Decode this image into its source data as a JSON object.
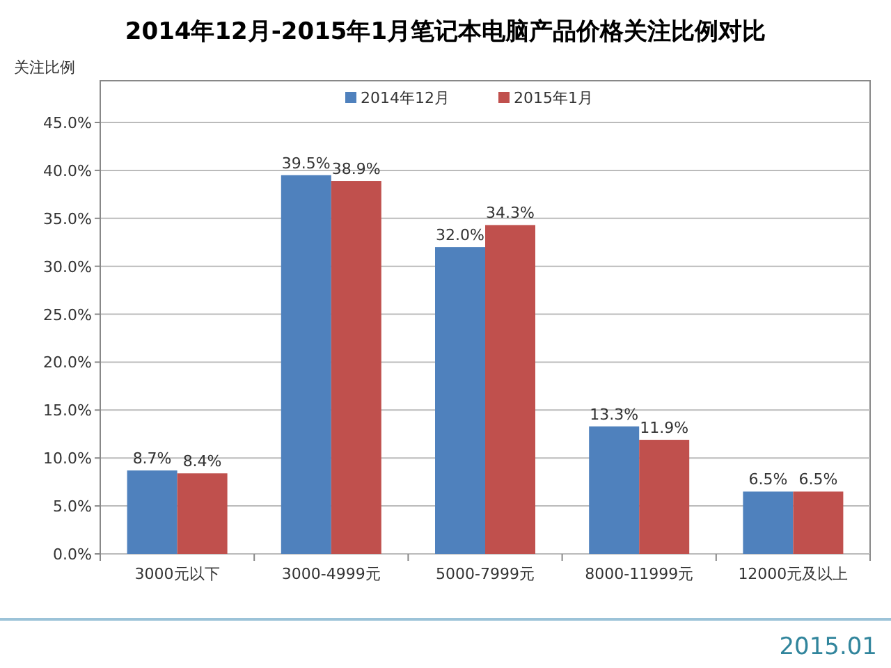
{
  "chart_data": {
    "type": "bar",
    "title": "2014年12月-2015年1月笔记本电脑产品价格关注比例对比",
    "ylabel": "关注比例",
    "categories": [
      "3000元以下",
      "3000-4999元",
      "5000-7999元",
      "8000-11999元",
      "12000元及以上"
    ],
    "series": [
      {
        "name": "2014年12月",
        "color": "#4f81bd",
        "values": [
          8.7,
          39.5,
          32.0,
          13.3,
          6.5
        ],
        "value_labels": [
          "8.7%",
          "39.5%",
          "32.0%",
          "13.3%",
          "6.5%"
        ]
      },
      {
        "name": "2015年1月",
        "color": "#c0504d",
        "values": [
          8.4,
          38.9,
          34.3,
          11.9,
          6.5
        ],
        "value_labels": [
          "8.4%",
          "38.9%",
          "34.3%",
          "11.9%",
          "6.5%"
        ]
      }
    ],
    "ylim": [
      0,
      45
    ],
    "yticks": [
      {
        "value": 0,
        "label": "0.0%"
      },
      {
        "value": 5,
        "label": "5.0%"
      },
      {
        "value": 10,
        "label": "10.0%"
      },
      {
        "value": 15,
        "label": "15.0%"
      },
      {
        "value": 20,
        "label": "20.0%"
      },
      {
        "value": 25,
        "label": "25.0%"
      },
      {
        "value": 30,
        "label": "30.0%"
      },
      {
        "value": 35,
        "label": "35.0%"
      },
      {
        "value": 40,
        "label": "40.0%"
      },
      {
        "value": 45,
        "label": "45.0%"
      }
    ],
    "grid": "y",
    "legend": "top",
    "annotations": [
      "2015.01"
    ]
  }
}
